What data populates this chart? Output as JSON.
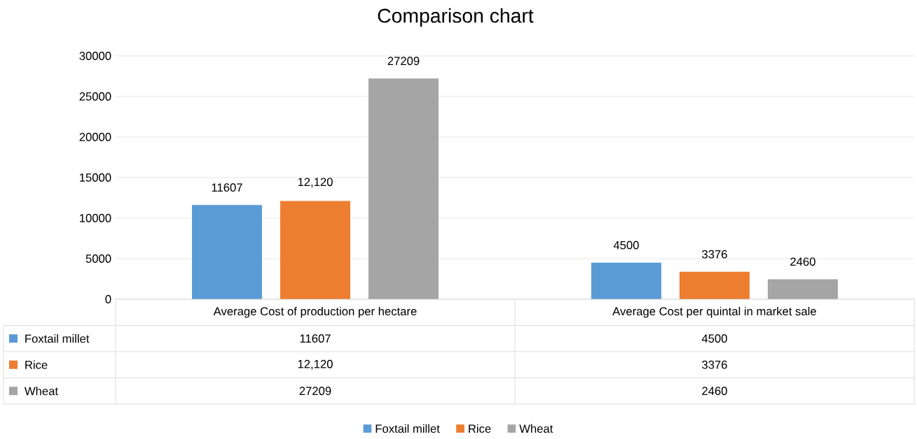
{
  "chart_data": {
    "type": "bar",
    "title": "Comparison chart",
    "categories": [
      "Average Cost of production per hectare",
      "Average Cost per quintal in market sale"
    ],
    "series": [
      {
        "name": "Foxtail millet",
        "color": "#5b9bd5",
        "values": [
          11607,
          4500
        ],
        "value_labels": [
          "11607",
          "4500"
        ]
      },
      {
        "name": "Rice",
        "color": "#ed7d31",
        "values": [
          12120,
          3376
        ],
        "value_labels": [
          "12,120",
          "3376"
        ]
      },
      {
        "name": "Wheat",
        "color": "#a5a5a5",
        "values": [
          27209,
          2460
        ],
        "value_labels": [
          "27209",
          "2460"
        ]
      }
    ],
    "ylim": [
      0,
      30000
    ],
    "yticks": [
      0,
      5000,
      10000,
      15000,
      20000,
      25000,
      30000
    ],
    "grid": "y",
    "legend": "bottom"
  }
}
